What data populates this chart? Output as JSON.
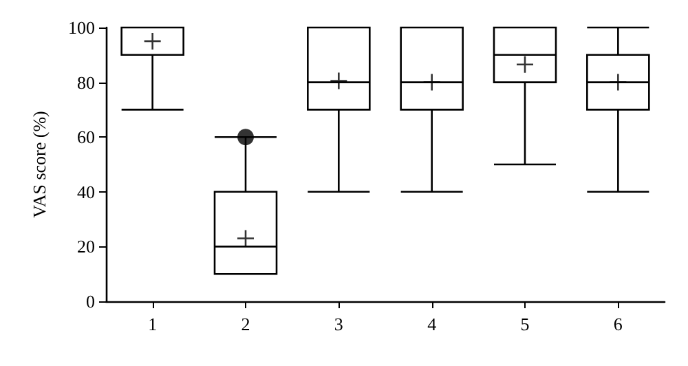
{
  "chart_data": {
    "type": "box",
    "ylabel": "VAS score (%)",
    "categories": [
      "1",
      "2",
      "3",
      "4",
      "5",
      "6"
    ],
    "boxes": [
      {
        "low": 70,
        "q1": 90,
        "median": 100,
        "q3": 100,
        "high": 100,
        "mean": 95
      },
      {
        "low": 10,
        "q1": 10,
        "median": 20,
        "q3": 40,
        "high": 60,
        "mean": 23,
        "outliers": [
          60
        ]
      },
      {
        "low": 40,
        "q1": 70,
        "median": 80,
        "q3": 100,
        "high": 100,
        "mean": 80.5
      },
      {
        "low": 40,
        "q1": 70,
        "median": 80,
        "q3": 100,
        "high": 100,
        "mean": 80
      },
      {
        "low": 50,
        "q1": 80,
        "median": 90,
        "q3": 100,
        "high": 100,
        "mean": 86.5
      },
      {
        "low": 40,
        "q1": 70,
        "median": 80,
        "q3": 90,
        "high": 100,
        "mean": 80
      }
    ],
    "color": "#000000",
    "ylim": [
      0,
      100
    ],
    "yticks": [
      0,
      20,
      40,
      60,
      80,
      100
    ],
    "grid": false
  }
}
